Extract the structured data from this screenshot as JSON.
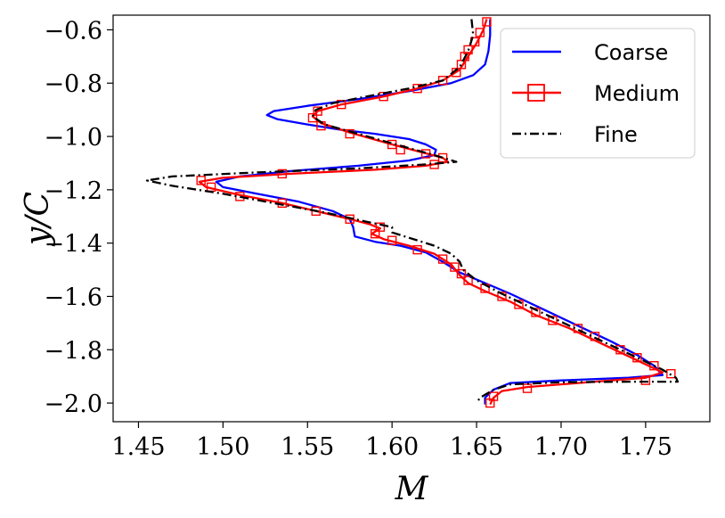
{
  "chart_data": {
    "type": "line",
    "title": "",
    "xlabel": "M",
    "ylabel": "y/C",
    "xlim": [
      1.435,
      1.788
    ],
    "ylim": [
      -2.07,
      -0.545
    ],
    "xticks": [
      1.45,
      1.5,
      1.55,
      1.6,
      1.65,
      1.7,
      1.75
    ],
    "xtick_labels": [
      "1.45",
      "1.50",
      "1.55",
      "1.60",
      "1.65",
      "1.70",
      "1.75"
    ],
    "yticks": [
      -0.6,
      -0.8,
      -1.0,
      -1.2,
      -1.4,
      -1.6,
      -1.8,
      -2.0
    ],
    "ytick_labels": [
      "−0.6",
      "−0.8",
      "−1.0",
      "−1.2",
      "−1.4",
      "−1.6",
      "−1.8",
      "−2.0"
    ],
    "grid": false,
    "legend_position": "top-right",
    "series": [
      {
        "name": "Coarse",
        "color": "#0000ff",
        "style": "solid",
        "marker": "none",
        "points": [
          [
            1.658,
            -0.56
          ],
          [
            1.658,
            -0.62
          ],
          [
            1.657,
            -0.68
          ],
          [
            1.655,
            -0.73
          ],
          [
            1.648,
            -0.77
          ],
          [
            1.635,
            -0.8
          ],
          [
            1.61,
            -0.83
          ],
          [
            1.58,
            -0.86
          ],
          [
            1.55,
            -0.885
          ],
          [
            1.53,
            -0.905
          ],
          [
            1.526,
            -0.92
          ],
          [
            1.532,
            -0.935
          ],
          [
            1.55,
            -0.955
          ],
          [
            1.57,
            -0.975
          ],
          [
            1.59,
            -0.99
          ],
          [
            1.61,
            -1.01
          ],
          [
            1.62,
            -1.03
          ],
          [
            1.626,
            -1.05
          ],
          [
            1.625,
            -1.07
          ],
          [
            1.61,
            -1.09
          ],
          [
            1.58,
            -1.11
          ],
          [
            1.54,
            -1.13
          ],
          [
            1.51,
            -1.15
          ],
          [
            1.496,
            -1.17
          ],
          [
            1.5,
            -1.19
          ],
          [
            1.52,
            -1.215
          ],
          [
            1.545,
            -1.245
          ],
          [
            1.565,
            -1.28
          ],
          [
            1.575,
            -1.31
          ],
          [
            1.577,
            -1.34
          ],
          [
            1.578,
            -1.375
          ],
          [
            1.59,
            -1.395
          ],
          [
            1.605,
            -1.41
          ],
          [
            1.62,
            -1.435
          ],
          [
            1.63,
            -1.47
          ],
          [
            1.64,
            -1.51
          ],
          [
            1.655,
            -1.55
          ],
          [
            1.67,
            -1.59
          ],
          [
            1.69,
            -1.65
          ],
          [
            1.71,
            -1.71
          ],
          [
            1.73,
            -1.77
          ],
          [
            1.745,
            -1.82
          ],
          [
            1.755,
            -1.86
          ],
          [
            1.76,
            -1.895
          ],
          [
            1.74,
            -1.905
          ],
          [
            1.7,
            -1.915
          ],
          [
            1.67,
            -1.925
          ],
          [
            1.66,
            -1.95
          ],
          [
            1.655,
            -1.98
          ],
          [
            1.655,
            -2.005
          ]
        ]
      },
      {
        "name": "Medium",
        "color": "#ff0000",
        "style": "solid",
        "marker": "square",
        "points": [
          [
            1.656,
            -0.56
          ],
          [
            1.654,
            -0.6
          ],
          [
            1.65,
            -0.65
          ],
          [
            1.645,
            -0.7
          ],
          [
            1.64,
            -0.75
          ],
          [
            1.63,
            -0.79
          ],
          [
            1.615,
            -0.82
          ],
          [
            1.595,
            -0.85
          ],
          [
            1.57,
            -0.88
          ],
          [
            1.556,
            -0.905
          ],
          [
            1.553,
            -0.925
          ],
          [
            1.558,
            -0.95
          ],
          [
            1.575,
            -0.985
          ],
          [
            1.6,
            -1.03
          ],
          [
            1.618,
            -1.06
          ],
          [
            1.63,
            -1.08
          ],
          [
            1.633,
            -1.095
          ],
          [
            1.62,
            -1.11
          ],
          [
            1.59,
            -1.125
          ],
          [
            1.54,
            -1.14
          ],
          [
            1.5,
            -1.155
          ],
          [
            1.486,
            -1.17
          ],
          [
            1.49,
            -1.19
          ],
          [
            1.51,
            -1.22
          ],
          [
            1.535,
            -1.25
          ],
          [
            1.555,
            -1.28
          ],
          [
            1.575,
            -1.31
          ],
          [
            1.587,
            -1.33
          ],
          [
            1.593,
            -1.345
          ],
          [
            1.588,
            -1.365
          ],
          [
            1.595,
            -1.385
          ],
          [
            1.61,
            -1.41
          ],
          [
            1.625,
            -1.44
          ],
          [
            1.635,
            -1.48
          ],
          [
            1.64,
            -1.52
          ],
          [
            1.645,
            -1.55
          ],
          [
            1.655,
            -1.58
          ],
          [
            1.67,
            -1.62
          ],
          [
            1.685,
            -1.67
          ],
          [
            1.705,
            -1.72
          ],
          [
            1.725,
            -1.78
          ],
          [
            1.745,
            -1.84
          ],
          [
            1.76,
            -1.885
          ],
          [
            1.75,
            -1.905
          ],
          [
            1.72,
            -1.92
          ],
          [
            1.68,
            -1.94
          ],
          [
            1.665,
            -1.955
          ],
          [
            1.66,
            -1.98
          ],
          [
            1.658,
            -2.005
          ]
        ]
      },
      {
        "name": "Fine",
        "color": "#000000",
        "style": "dashdot",
        "marker": "none",
        "points": [
          [
            1.647,
            -0.56
          ],
          [
            1.648,
            -0.62
          ],
          [
            1.645,
            -0.68
          ],
          [
            1.64,
            -0.74
          ],
          [
            1.63,
            -0.79
          ],
          [
            1.61,
            -0.82
          ],
          [
            1.585,
            -0.85
          ],
          [
            1.565,
            -0.875
          ],
          [
            1.555,
            -0.9
          ],
          [
            1.553,
            -0.925
          ],
          [
            1.56,
            -0.955
          ],
          [
            1.58,
            -0.99
          ],
          [
            1.605,
            -1.035
          ],
          [
            1.625,
            -1.07
          ],
          [
            1.638,
            -1.095
          ],
          [
            1.62,
            -1.105
          ],
          [
            1.58,
            -1.12
          ],
          [
            1.52,
            -1.135
          ],
          [
            1.47,
            -1.15
          ],
          [
            1.455,
            -1.165
          ],
          [
            1.47,
            -1.185
          ],
          [
            1.5,
            -1.215
          ],
          [
            1.53,
            -1.25
          ],
          [
            1.56,
            -1.285
          ],
          [
            1.585,
            -1.32
          ],
          [
            1.6,
            -1.34
          ],
          [
            1.6,
            -1.36
          ],
          [
            1.61,
            -1.38
          ],
          [
            1.625,
            -1.41
          ],
          [
            1.635,
            -1.44
          ],
          [
            1.64,
            -1.47
          ],
          [
            1.642,
            -1.5
          ],
          [
            1.65,
            -1.54
          ],
          [
            1.665,
            -1.59
          ],
          [
            1.685,
            -1.65
          ],
          [
            1.705,
            -1.71
          ],
          [
            1.725,
            -1.77
          ],
          [
            1.745,
            -1.83
          ],
          [
            1.76,
            -1.875
          ],
          [
            1.768,
            -1.905
          ],
          [
            1.769,
            -1.92
          ],
          [
            1.74,
            -1.92
          ],
          [
            1.7,
            -1.922
          ],
          [
            1.67,
            -1.93
          ],
          [
            1.66,
            -1.95
          ],
          [
            1.652,
            -1.98
          ],
          [
            1.65,
            -2.0
          ]
        ]
      }
    ],
    "medium_markers": [
      [
        1.656,
        -0.57
      ],
      [
        1.652,
        -0.61
      ],
      [
        1.649,
        -0.645
      ],
      [
        1.645,
        -0.675
      ],
      [
        1.643,
        -0.7
      ],
      [
        1.641,
        -0.73
      ],
      [
        1.638,
        -0.76
      ],
      [
        1.63,
        -0.79
      ],
      [
        1.615,
        -0.82
      ],
      [
        1.595,
        -0.85
      ],
      [
        1.57,
        -0.88
      ],
      [
        1.556,
        -0.905
      ],
      [
        1.553,
        -0.93
      ],
      [
        1.558,
        -0.96
      ],
      [
        1.575,
        -0.99
      ],
      [
        1.6,
        -1.03
      ],
      [
        1.605,
        -1.05
      ],
      [
        1.62,
        -1.065
      ],
      [
        1.63,
        -1.08
      ],
      [
        1.625,
        -1.105
      ],
      [
        1.535,
        -1.14
      ],
      [
        1.487,
        -1.165
      ],
      [
        1.493,
        -1.19
      ],
      [
        1.51,
        -1.225
      ],
      [
        1.535,
        -1.25
      ],
      [
        1.555,
        -1.28
      ],
      [
        1.575,
        -1.31
      ],
      [
        1.593,
        -1.34
      ],
      [
        1.59,
        -1.365
      ],
      [
        1.6,
        -1.39
      ],
      [
        1.615,
        -1.425
      ],
      [
        1.63,
        -1.46
      ],
      [
        1.637,
        -1.49
      ],
      [
        1.641,
        -1.515
      ],
      [
        1.645,
        -1.54
      ],
      [
        1.655,
        -1.57
      ],
      [
        1.665,
        -1.6
      ],
      [
        1.675,
        -1.63
      ],
      [
        1.685,
        -1.66
      ],
      [
        1.695,
        -1.69
      ],
      [
        1.71,
        -1.72
      ],
      [
        1.72,
        -1.75
      ],
      [
        1.735,
        -1.8
      ],
      [
        1.745,
        -1.83
      ],
      [
        1.755,
        -1.86
      ],
      [
        1.765,
        -1.89
      ],
      [
        1.75,
        -1.915
      ],
      [
        1.68,
        -1.945
      ],
      [
        1.66,
        -1.975
      ],
      [
        1.658,
        -2.0
      ]
    ]
  }
}
